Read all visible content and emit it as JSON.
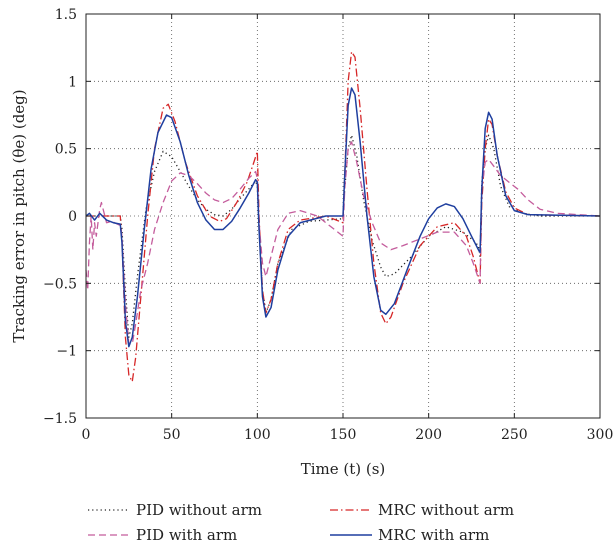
{
  "chart_data": {
    "type": "line",
    "xlabel": "Time (t) (s)",
    "ylabel": "Tracking error in pitch (θe) (deg)",
    "xlim": [
      0,
      300
    ],
    "ylim": [
      -1.5,
      1.5
    ],
    "x_ticks": [
      "0",
      "50",
      "100",
      "150",
      "200",
      "250",
      "300"
    ],
    "y_ticks": [
      "1.5",
      "1",
      "0.5",
      "0",
      "−0.5",
      "−1",
      "−1.5"
    ],
    "grid": "dotted",
    "legend_position": "bottom",
    "series": [
      {
        "name": "PID without arm",
        "color": "#222222",
        "dash": "dotted",
        "points": [
          [
            0,
            0
          ],
          [
            5,
            0
          ],
          [
            10,
            0
          ],
          [
            15,
            0
          ],
          [
            20,
            0
          ],
          [
            21,
            -0.1
          ],
          [
            23,
            -0.55
          ],
          [
            25,
            -0.9
          ],
          [
            27,
            -0.8
          ],
          [
            30,
            -0.45
          ],
          [
            35,
            0.05
          ],
          [
            40,
            0.33
          ],
          [
            45,
            0.48
          ],
          [
            50,
            0.44
          ],
          [
            55,
            0.33
          ],
          [
            60,
            0.22
          ],
          [
            65,
            0.12
          ],
          [
            70,
            0.05
          ],
          [
            75,
            0.01
          ],
          [
            80,
            0.0
          ],
          [
            85,
            0.05
          ],
          [
            90,
            0.13
          ],
          [
            95,
            0.2
          ],
          [
            99,
            0.26
          ],
          [
            100,
            0.22
          ],
          [
            101,
            -0.1
          ],
          [
            103,
            -0.55
          ],
          [
            105,
            -0.72
          ],
          [
            108,
            -0.62
          ],
          [
            112,
            -0.35
          ],
          [
            120,
            -0.1
          ],
          [
            130,
            -0.04
          ],
          [
            140,
            -0.03
          ],
          [
            150,
            -0.02
          ],
          [
            151,
            0.2
          ],
          [
            153,
            0.5
          ],
          [
            155,
            0.6
          ],
          [
            158,
            0.45
          ],
          [
            162,
            0.12
          ],
          [
            167,
            -0.18
          ],
          [
            172,
            -0.38
          ],
          [
            175,
            -0.45
          ],
          [
            180,
            -0.43
          ],
          [
            190,
            -0.3
          ],
          [
            200,
            -0.15
          ],
          [
            210,
            -0.08
          ],
          [
            220,
            -0.12
          ],
          [
            226,
            -0.18
          ],
          [
            229,
            -0.22
          ],
          [
            230,
            -0.3
          ],
          [
            231,
            0.25
          ],
          [
            233,
            0.5
          ],
          [
            235,
            0.6
          ],
          [
            238,
            0.5
          ],
          [
            242,
            0.22
          ],
          [
            247,
            0.07
          ],
          [
            255,
            0.02
          ],
          [
            265,
            0.0
          ],
          [
            300,
            0.0
          ]
        ]
      },
      {
        "name": "MRC without arm",
        "color": "#d62728",
        "dash": "dashdot",
        "points": [
          [
            0,
            0
          ],
          [
            5,
            0
          ],
          [
            10,
            0
          ],
          [
            15,
            0
          ],
          [
            20,
            0
          ],
          [
            21,
            -0.2
          ],
          [
            23,
            -0.9
          ],
          [
            25,
            -1.18
          ],
          [
            27,
            -1.23
          ],
          [
            29,
            -1.05
          ],
          [
            32,
            -0.6
          ],
          [
            36,
            0.0
          ],
          [
            40,
            0.5
          ],
          [
            45,
            0.8
          ],
          [
            48,
            0.83
          ],
          [
            52,
            0.7
          ],
          [
            58,
            0.4
          ],
          [
            65,
            0.15
          ],
          [
            72,
            0.0
          ],
          [
            78,
            -0.04
          ],
          [
            82,
            -0.02
          ],
          [
            88,
            0.1
          ],
          [
            94,
            0.25
          ],
          [
            98,
            0.4
          ],
          [
            100,
            0.48
          ],
          [
            101,
            0.0
          ],
          [
            103,
            -0.55
          ],
          [
            105,
            -0.72
          ],
          [
            108,
            -0.62
          ],
          [
            112,
            -0.35
          ],
          [
            118,
            -0.1
          ],
          [
            125,
            -0.03
          ],
          [
            140,
            0.0
          ],
          [
            150,
            -0.05
          ],
          [
            151,
            0.3
          ],
          [
            153,
            1.0
          ],
          [
            155,
            1.22
          ],
          [
            157,
            1.18
          ],
          [
            160,
            0.8
          ],
          [
            164,
            0.2
          ],
          [
            168,
            -0.35
          ],
          [
            172,
            -0.72
          ],
          [
            175,
            -0.8
          ],
          [
            178,
            -0.75
          ],
          [
            185,
            -0.5
          ],
          [
            195,
            -0.22
          ],
          [
            205,
            -0.08
          ],
          [
            215,
            -0.05
          ],
          [
            222,
            -0.15
          ],
          [
            226,
            -0.3
          ],
          [
            230,
            -0.5
          ],
          [
            231,
            0.1
          ],
          [
            233,
            0.5
          ],
          [
            235,
            0.72
          ],
          [
            237,
            0.68
          ],
          [
            240,
            0.45
          ],
          [
            245,
            0.18
          ],
          [
            250,
            0.06
          ],
          [
            258,
            0.01
          ],
          [
            300,
            0.0
          ]
        ]
      },
      {
        "name": "PID with arm",
        "color": "#c45c9c",
        "dash": "dashed",
        "points": [
          [
            0,
            -0.4
          ],
          [
            1,
            -0.55
          ],
          [
            2,
            -0.2
          ],
          [
            3,
            0.0
          ],
          [
            4,
            -0.25
          ],
          [
            5,
            -0.05
          ],
          [
            6,
            -0.15
          ],
          [
            8,
            0.05
          ],
          [
            9,
            0.1
          ],
          [
            10,
            0.05
          ],
          [
            12,
            -0.05
          ],
          [
            15,
            -0.04
          ],
          [
            20,
            -0.07
          ],
          [
            21,
            -0.15
          ],
          [
            23,
            -0.65
          ],
          [
            25,
            -0.95
          ],
          [
            27,
            -0.95
          ],
          [
            29,
            -0.8
          ],
          [
            32,
            -0.55
          ],
          [
            36,
            -0.35
          ],
          [
            40,
            -0.1
          ],
          [
            45,
            0.1
          ],
          [
            50,
            0.26
          ],
          [
            55,
            0.32
          ],
          [
            60,
            0.3
          ],
          [
            65,
            0.24
          ],
          [
            70,
            0.17
          ],
          [
            75,
            0.12
          ],
          [
            80,
            0.1
          ],
          [
            85,
            0.13
          ],
          [
            90,
            0.2
          ],
          [
            95,
            0.28
          ],
          [
            99,
            0.33
          ],
          [
            100,
            0.28
          ],
          [
            101,
            -0.05
          ],
          [
            103,
            -0.35
          ],
          [
            105,
            -0.45
          ],
          [
            108,
            -0.3
          ],
          [
            112,
            -0.1
          ],
          [
            118,
            0.02
          ],
          [
            125,
            0.04
          ],
          [
            135,
            0.0
          ],
          [
            145,
            -0.1
          ],
          [
            150,
            -0.15
          ],
          [
            151,
            0.2
          ],
          [
            153,
            0.5
          ],
          [
            155,
            0.55
          ],
          [
            158,
            0.4
          ],
          [
            162,
            0.15
          ],
          [
            167,
            -0.05
          ],
          [
            172,
            -0.2
          ],
          [
            178,
            -0.25
          ],
          [
            185,
            -0.22
          ],
          [
            195,
            -0.17
          ],
          [
            205,
            -0.12
          ],
          [
            215,
            -0.12
          ],
          [
            222,
            -0.22
          ],
          [
            226,
            -0.35
          ],
          [
            230,
            -0.5
          ],
          [
            231,
            0.2
          ],
          [
            233,
            0.4
          ],
          [
            235,
            0.42
          ],
          [
            238,
            0.37
          ],
          [
            242,
            0.3
          ],
          [
            247,
            0.25
          ],
          [
            252,
            0.2
          ],
          [
            258,
            0.12
          ],
          [
            265,
            0.05
          ],
          [
            275,
            0.02
          ],
          [
            300,
            0.0
          ]
        ]
      },
      {
        "name": "MRC with arm",
        "color": "#1f3f9f",
        "dash": "solid",
        "points": [
          [
            0,
            0.0
          ],
          [
            2,
            0.02
          ],
          [
            5,
            -0.03
          ],
          [
            8,
            0.02
          ],
          [
            12,
            -0.03
          ],
          [
            16,
            -0.05
          ],
          [
            20,
            -0.06
          ],
          [
            21,
            -0.2
          ],
          [
            23,
            -0.78
          ],
          [
            25,
            -0.97
          ],
          [
            27,
            -0.9
          ],
          [
            30,
            -0.6
          ],
          [
            34,
            -0.1
          ],
          [
            38,
            0.35
          ],
          [
            42,
            0.62
          ],
          [
            47,
            0.75
          ],
          [
            50,
            0.73
          ],
          [
            55,
            0.55
          ],
          [
            60,
            0.3
          ],
          [
            65,
            0.1
          ],
          [
            70,
            -0.03
          ],
          [
            75,
            -0.1
          ],
          [
            80,
            -0.1
          ],
          [
            85,
            -0.04
          ],
          [
            90,
            0.06
          ],
          [
            95,
            0.17
          ],
          [
            99,
            0.27
          ],
          [
            100,
            0.25
          ],
          [
            101,
            -0.1
          ],
          [
            103,
            -0.6
          ],
          [
            105,
            -0.75
          ],
          [
            108,
            -0.68
          ],
          [
            112,
            -0.4
          ],
          [
            118,
            -0.15
          ],
          [
            125,
            -0.05
          ],
          [
            140,
            0.0
          ],
          [
            150,
            0.0
          ],
          [
            151,
            0.3
          ],
          [
            153,
            0.82
          ],
          [
            155,
            0.95
          ],
          [
            157,
            0.9
          ],
          [
            160,
            0.55
          ],
          [
            164,
            0.0
          ],
          [
            168,
            -0.45
          ],
          [
            172,
            -0.7
          ],
          [
            175,
            -0.73
          ],
          [
            180,
            -0.65
          ],
          [
            188,
            -0.38
          ],
          [
            195,
            -0.15
          ],
          [
            200,
            -0.02
          ],
          [
            205,
            0.06
          ],
          [
            210,
            0.09
          ],
          [
            215,
            0.07
          ],
          [
            220,
            -0.02
          ],
          [
            225,
            -0.15
          ],
          [
            229,
            -0.25
          ],
          [
            230,
            -0.27
          ],
          [
            231,
            0.2
          ],
          [
            233,
            0.65
          ],
          [
            235,
            0.77
          ],
          [
            237,
            0.72
          ],
          [
            240,
            0.45
          ],
          [
            245,
            0.15
          ],
          [
            250,
            0.04
          ],
          [
            258,
            0.01
          ],
          [
            300,
            0.0
          ]
        ]
      }
    ]
  }
}
